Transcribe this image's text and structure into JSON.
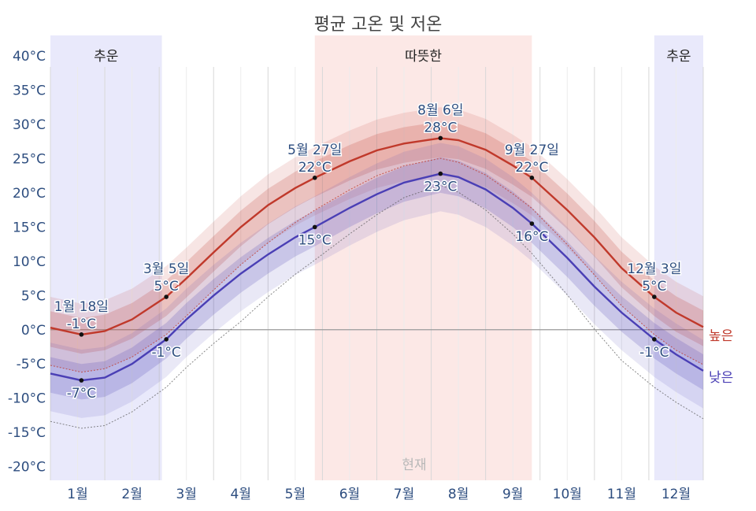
{
  "chart_data": {
    "type": "line",
    "title": "평균 고온 및 저온",
    "months": [
      "1월",
      "2월",
      "3월",
      "4월",
      "5월",
      "6월",
      "7월",
      "8월",
      "9월",
      "10월",
      "11월",
      "12월"
    ],
    "y_ticks": [
      "40°C",
      "35°C",
      "30°C",
      "25°C",
      "20°C",
      "15°C",
      "10°C",
      "5°C",
      "0°C",
      "-5°C",
      "-10°C",
      "-15°C",
      "-20°C"
    ],
    "ylim": [
      -22,
      43
    ],
    "xlim": [
      0,
      12
    ],
    "seasons": [
      {
        "label": "추운",
        "kind": "cold",
        "start": 0.0,
        "end": 2.05
      },
      {
        "label": "따뜻한",
        "kind": "warm",
        "start": 4.86,
        "end": 8.85
      },
      {
        "label": "추운",
        "kind": "cold",
        "start": 11.1,
        "end": 12.0
      }
    ],
    "series": [
      {
        "name": "높은",
        "color": "#c0392b",
        "x": [
          0,
          0.57,
          1,
          1.5,
          2.13,
          2.5,
          3,
          3.5,
          4,
          4.5,
          4.86,
          5.5,
          6,
          6.5,
          7.17,
          7.5,
          8,
          8.5,
          8.85,
          9.5,
          10,
          10.5,
          11.1,
          11.5,
          12
        ],
        "y": [
          0.3,
          -0.7,
          -0.2,
          1.5,
          4.8,
          7.5,
          11.3,
          15,
          18.2,
          20.7,
          22.2,
          24.6,
          26.2,
          27.2,
          28,
          27.7,
          26.3,
          24,
          22.2,
          17.5,
          13.5,
          9,
          4.8,
          2.5,
          0.4
        ]
      },
      {
        "name": "낮은",
        "color": "#4a3fb5",
        "x": [
          0,
          0.57,
          1,
          1.5,
          2.13,
          2.5,
          3,
          3.5,
          4,
          4.5,
          4.86,
          5.5,
          6,
          6.5,
          7.17,
          7.5,
          8,
          8.5,
          8.85,
          9.5,
          10,
          10.5,
          11.1,
          11.5,
          12
        ],
        "y": [
          -6.4,
          -7.4,
          -7,
          -5,
          -1.4,
          1.5,
          5,
          8.2,
          11,
          13.5,
          15,
          17.8,
          19.8,
          21.5,
          22.8,
          22.3,
          20.5,
          17.8,
          15.5,
          10.5,
          6.3,
          2.5,
          -1.4,
          -3.6,
          -6
        ]
      }
    ],
    "annotations": [
      {
        "x": 0.57,
        "y": -0.7,
        "date": "1월 18일",
        "value": "-1°C",
        "pos": "above"
      },
      {
        "x": 0.57,
        "y": -7.4,
        "value": "-7°C",
        "pos": "below"
      },
      {
        "x": 2.13,
        "y": 4.8,
        "date": "3월 5일",
        "value": "5°C",
        "pos": "above"
      },
      {
        "x": 2.13,
        "y": -1.4,
        "value": "-1°C",
        "pos": "below"
      },
      {
        "x": 4.86,
        "y": 22.2,
        "date": "5월 27일",
        "value": "22°C",
        "pos": "above"
      },
      {
        "x": 4.86,
        "y": 15,
        "value": "15°C",
        "pos": "below"
      },
      {
        "x": 7.17,
        "y": 28,
        "date": "8월 6일",
        "value": "28°C",
        "pos": "above"
      },
      {
        "x": 7.17,
        "y": 22.8,
        "value": "23°C",
        "pos": "below"
      },
      {
        "x": 8.85,
        "y": 22.2,
        "date": "9월 27일",
        "value": "22°C",
        "pos": "above"
      },
      {
        "x": 8.85,
        "y": 15.5,
        "value": "16°C",
        "pos": "below"
      },
      {
        "x": 11.1,
        "y": 4.8,
        "date": "12월 3일",
        "value": "5°C",
        "pos": "above"
      },
      {
        "x": 11.1,
        "y": -1.4,
        "value": "-1°C",
        "pos": "below"
      }
    ],
    "now_label": "현재",
    "legend": [
      "높은",
      "낮은"
    ],
    "grid": true,
    "legend_placement": "right"
  },
  "colors": {
    "high": "#c0392b",
    "low": "#4a3fb5",
    "cold_band": "#e9e9fb",
    "warm_band": "#fce8e6"
  }
}
